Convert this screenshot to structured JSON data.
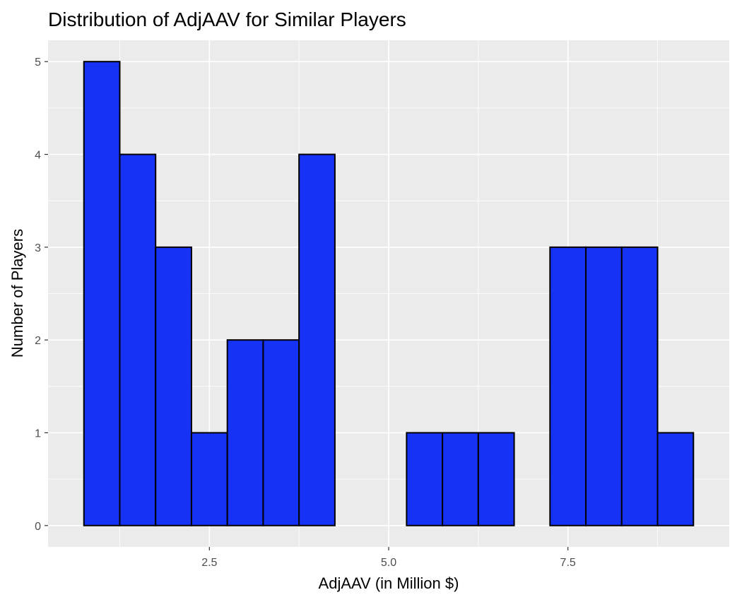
{
  "chart_data": {
    "type": "bar",
    "title": "Distribution of AdjAAV for Similar Players",
    "xlabel": "AdjAAV (in Million $)",
    "ylabel": "Number of Players",
    "bin_width": 0.5,
    "bin_centers": [
      1.0,
      1.5,
      2.0,
      2.5,
      3.0,
      3.5,
      4.0,
      4.5,
      5.0,
      5.5,
      6.0,
      6.5,
      7.0,
      7.5,
      8.0,
      8.5,
      9.0
    ],
    "values": [
      5,
      4,
      3,
      1,
      2,
      2,
      4,
      0,
      0,
      1,
      1,
      1,
      0,
      3,
      3,
      3,
      1
    ],
    "xlim": [
      0.25,
      9.75
    ],
    "ylim": [
      -0.23,
      5.23
    ],
    "x_ticks": [
      2.5,
      5.0,
      7.5
    ],
    "x_tick_labels": [
      "2.5",
      "5.0",
      "7.5"
    ],
    "y_ticks": [
      0,
      1,
      2,
      3,
      4,
      5
    ],
    "y_tick_labels": [
      "0",
      "1",
      "2",
      "3",
      "4",
      "5"
    ],
    "bar_color": "#1532f5",
    "panel_color": "#ebebeb",
    "grid": true
  }
}
